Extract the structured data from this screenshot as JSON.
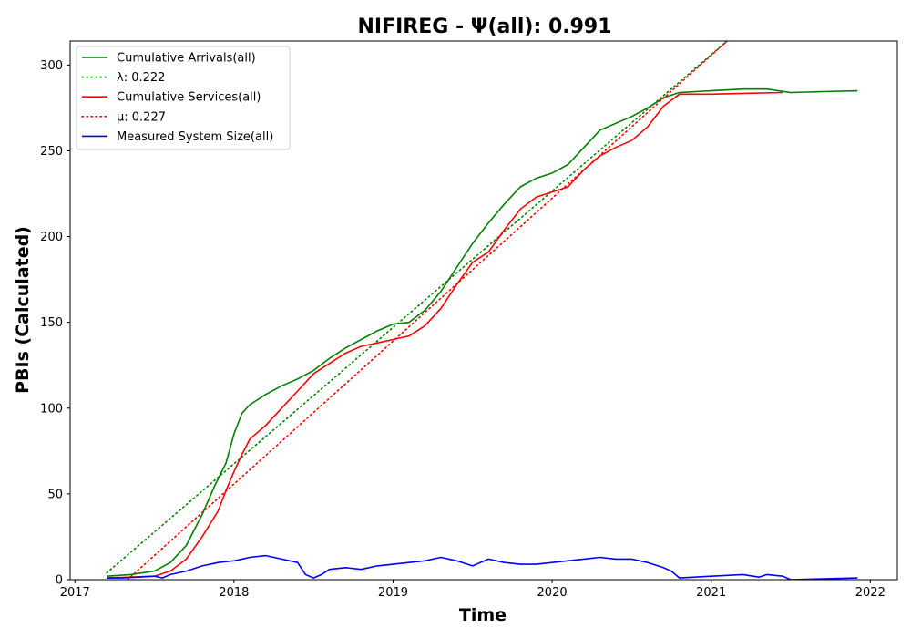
{
  "chart_data": {
    "type": "line",
    "title": "NIFIREG -  Ψ(all): 0.991",
    "xlabel": "Time",
    "ylabel": "PBIs (Calculated)",
    "xlim": [
      2016.97,
      2022.17
    ],
    "ylim": [
      0,
      314
    ],
    "x_ticks": [
      2017,
      2018,
      2019,
      2020,
      2021,
      2022
    ],
    "y_ticks": [
      0,
      50,
      100,
      150,
      200,
      250,
      300
    ],
    "grid": false,
    "legend_position": "top-left",
    "series": [
      {
        "name": "Cumulative Arrivals(all)",
        "color": "#008000",
        "style": "solid",
        "x": [
          2017.2,
          2017.35,
          2017.5,
          2017.6,
          2017.7,
          2017.8,
          2017.88,
          2017.95,
          2018.0,
          2018.05,
          2018.1,
          2018.2,
          2018.3,
          2018.4,
          2018.5,
          2018.6,
          2018.7,
          2018.8,
          2018.9,
          2019.0,
          2019.1,
          2019.2,
          2019.3,
          2019.4,
          2019.5,
          2019.6,
          2019.7,
          2019.8,
          2019.9,
          2020.0,
          2020.1,
          2020.2,
          2020.3,
          2020.4,
          2020.5,
          2020.6,
          2020.7,
          2020.8,
          2020.9,
          2021.0,
          2021.2,
          2021.35,
          2021.5,
          2021.7,
          2021.92
        ],
        "y": [
          2,
          3,
          5,
          10,
          20,
          38,
          55,
          68,
          85,
          97,
          102,
          108,
          113,
          117,
          122,
          129,
          135,
          140,
          145,
          149,
          150,
          157,
          168,
          182,
          196,
          208,
          219,
          229,
          234,
          237,
          242,
          252,
          262,
          266,
          270,
          275,
          281,
          284,
          284.5,
          285,
          286,
          286,
          284,
          284.5,
          285
        ]
      },
      {
        "name": "λ: 0.222",
        "color": "#008000",
        "style": "dotted",
        "x": [
          2017.2,
          2021.1
        ],
        "y": [
          4,
          314
        ]
      },
      {
        "name": "Cumulative Services(all)",
        "color": "#ff0000",
        "style": "solid",
        "x": [
          2017.2,
          2017.35,
          2017.5,
          2017.6,
          2017.7,
          2017.8,
          2017.9,
          2017.95,
          2018.0,
          2018.05,
          2018.1,
          2018.2,
          2018.3,
          2018.4,
          2018.5,
          2018.6,
          2018.7,
          2018.8,
          2018.9,
          2019.0,
          2019.1,
          2019.2,
          2019.3,
          2019.4,
          2019.5,
          2019.6,
          2019.7,
          2019.8,
          2019.9,
          2020.0,
          2020.1,
          2020.2,
          2020.3,
          2020.4,
          2020.5,
          2020.6,
          2020.7,
          2020.8,
          2020.9,
          2021.0,
          2021.2,
          2021.45
        ],
        "y": [
          1,
          1.5,
          2,
          5,
          12,
          25,
          40,
          52,
          63,
          73,
          82,
          90,
          100,
          110,
          120,
          126,
          132,
          136,
          138,
          140,
          142,
          148,
          158,
          172,
          185,
          191,
          204,
          216,
          223,
          226,
          229,
          239,
          247,
          252,
          256,
          264,
          276,
          283,
          283,
          283,
          283.5,
          284
        ]
      },
      {
        "name": "μ: 0.227",
        "color": "#ff0000",
        "style": "dotted",
        "x": [
          2017.33,
          2021.1
        ],
        "y": [
          0,
          314
        ]
      },
      {
        "name": "Measured System Size(all)",
        "color": "#0000ff",
        "style": "solid",
        "x": [
          2017.2,
          2017.3,
          2017.4,
          2017.5,
          2017.55,
          2017.6,
          2017.7,
          2017.8,
          2017.9,
          2018.0,
          2018.1,
          2018.2,
          2018.3,
          2018.4,
          2018.45,
          2018.5,
          2018.55,
          2018.6,
          2018.7,
          2018.8,
          2018.9,
          2019.0,
          2019.1,
          2019.2,
          2019.3,
          2019.4,
          2019.5,
          2019.6,
          2019.7,
          2019.8,
          2019.9,
          2020.0,
          2020.1,
          2020.2,
          2020.3,
          2020.4,
          2020.5,
          2020.6,
          2020.7,
          2020.75,
          2020.8,
          2021.0,
          2021.2,
          2021.3,
          2021.35,
          2021.45,
          2021.5,
          2021.7,
          2021.92
        ],
        "y": [
          1,
          1,
          1.5,
          2,
          1,
          3,
          5,
          8,
          10,
          11,
          13,
          14,
          12,
          10,
          3,
          1,
          3,
          6,
          7,
          6,
          8,
          9,
          10,
          11,
          13,
          11,
          8,
          12,
          10,
          9,
          9,
          10,
          11,
          12,
          13,
          12,
          12,
          10,
          7,
          5,
          1,
          2,
          3,
          1.5,
          3,
          2,
          0,
          0.5,
          1
        ]
      }
    ]
  }
}
